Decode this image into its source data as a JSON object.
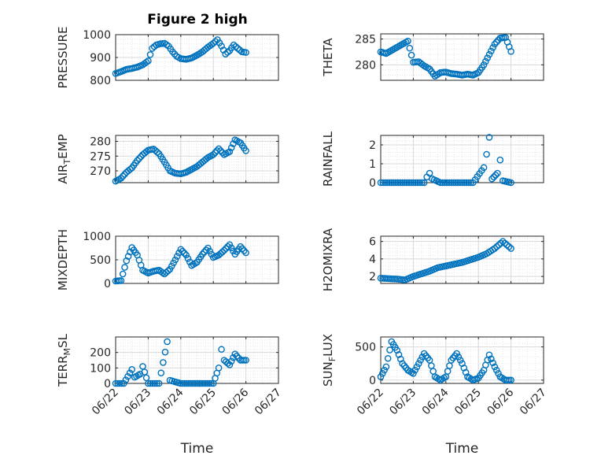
{
  "figure": {
    "title": "Figure 2 high",
    "marker_color": "#0072bd",
    "axes_color": "#262626",
    "grid_color": "#d9d9d9"
  },
  "chart_data": [
    {
      "type": "scatter",
      "ylabel": "PRESSURE",
      "xlabel": "",
      "title": "Figure 2 high",
      "xlim": [
        "06/22",
        "06/27"
      ],
      "ylim": [
        800,
        1000
      ],
      "yticks": [
        800,
        900,
        1000
      ],
      "grid": true,
      "points": [
        [
          "06/22 00:00",
          830
        ],
        [
          "06/22 04:00",
          838
        ],
        [
          "06/22 08:00",
          848
        ],
        [
          "06/22 12:00",
          852
        ],
        [
          "06/22 16:00",
          858
        ],
        [
          "06/22 20:00",
          868
        ],
        [
          "06/23 00:00",
          885
        ],
        [
          "06/23 03:00",
          940
        ],
        [
          "06/23 06:00",
          955
        ],
        [
          "06/23 09:00",
          960
        ],
        [
          "06/23 12:00",
          962
        ],
        [
          "06/23 15:00",
          950
        ],
        [
          "06/23 18:00",
          925
        ],
        [
          "06/23 21:00",
          905
        ],
        [
          "06/24 00:00",
          895
        ],
        [
          "06/24 04:00",
          892
        ],
        [
          "06/24 08:00",
          898
        ],
        [
          "06/24 12:00",
          910
        ],
        [
          "06/24 16:00",
          925
        ],
        [
          "06/24 20:00",
          945
        ],
        [
          "06/25 00:00",
          962
        ],
        [
          "06/25 03:00",
          978
        ],
        [
          "06/25 06:00",
          950
        ],
        [
          "06/25 09:00",
          915
        ],
        [
          "06/25 12:00",
          930
        ],
        [
          "06/25 15:00",
          955
        ],
        [
          "06/25 18:00",
          940
        ],
        [
          "06/25 21:00",
          925
        ],
        [
          "06/26 00:00",
          922
        ]
      ]
    },
    {
      "type": "scatter",
      "ylabel": "THETA",
      "xlabel": "",
      "xlim": [
        "06/22",
        "06/27"
      ],
      "ylim": [
        277,
        286
      ],
      "yticks": [
        280,
        285
      ],
      "grid": true,
      "points": [
        [
          "06/22 00:00",
          282.5
        ],
        [
          "06/22 04:00",
          282.2
        ],
        [
          "06/22 08:00",
          282.8
        ],
        [
          "06/22 12:00",
          283.4
        ],
        [
          "06/22 16:00",
          284.0
        ],
        [
          "06/22 20:00",
          284.6
        ],
        [
          "06/23 00:00",
          280.5
        ],
        [
          "06/23 04:00",
          280.6
        ],
        [
          "06/23 08:00",
          279.8
        ],
        [
          "06/23 12:00",
          279.2
        ],
        [
          "06/23 16:00",
          277.8
        ],
        [
          "06/23 20:00",
          278.5
        ],
        [
          "06/24 00:00",
          278.6
        ],
        [
          "06/24 04:00",
          278.3
        ],
        [
          "06/24 08:00",
          278.2
        ],
        [
          "06/24 12:00",
          278.0
        ],
        [
          "06/24 16:00",
          278.2
        ],
        [
          "06/24 20:00",
          278.0
        ],
        [
          "06/25 00:00",
          278.5
        ],
        [
          "06/25 04:00",
          280.0
        ],
        [
          "06/25 08:00",
          282.0
        ],
        [
          "06/25 12:00",
          284.0
        ],
        [
          "06/25 16:00",
          285.2
        ],
        [
          "06/25 20:00",
          285.3
        ],
        [
          "06/26 00:00",
          282.6
        ]
      ]
    },
    {
      "type": "scatter",
      "ylabel": "AIR_TEMP",
      "xlabel": "",
      "xlim": [
        "06/22",
        "06/27"
      ],
      "ylim": [
        266,
        282
      ],
      "yticks": [
        270,
        275,
        280
      ],
      "grid": true,
      "points": [
        [
          "06/22 00:00",
          266.5
        ],
        [
          "06/22 04:00",
          267.5
        ],
        [
          "06/22 08:00",
          269.5
        ],
        [
          "06/22 12:00",
          271.0
        ],
        [
          "06/22 16:00",
          273.5
        ],
        [
          "06/22 20:00",
          275.5
        ],
        [
          "06/23 00:00",
          277.0
        ],
        [
          "06/23 04:00",
          277.4
        ],
        [
          "06/23 08:00",
          275.8
        ],
        [
          "06/23 12:00",
          273.0
        ],
        [
          "06/23 16:00",
          270.0
        ],
        [
          "06/23 20:00",
          269.2
        ],
        [
          "06/24 00:00",
          269.0
        ],
        [
          "06/24 04:00",
          269.5
        ],
        [
          "06/24 08:00",
          270.5
        ],
        [
          "06/24 12:00",
          271.5
        ],
        [
          "06/24 16:00",
          273.0
        ],
        [
          "06/24 20:00",
          274.5
        ],
        [
          "06/25 00:00",
          275.5
        ],
        [
          "06/25 04:00",
          277.5
        ],
        [
          "06/25 08:00",
          275.5
        ],
        [
          "06/25 12:00",
          276.5
        ],
        [
          "06/25 16:00",
          280.5
        ],
        [
          "06/25 20:00",
          279.5
        ],
        [
          "06/26 00:00",
          276.8
        ]
      ]
    },
    {
      "type": "scatter",
      "ylabel": "RAINFALL",
      "xlabel": "",
      "xlim": [
        "06/22",
        "06/27"
      ],
      "ylim": [
        0,
        2.5
      ],
      "yticks": [
        0,
        1,
        2
      ],
      "grid": true,
      "points": [
        [
          "06/22 00:00",
          0
        ],
        [
          "06/22 08:00",
          0
        ],
        [
          "06/22 16:00",
          0
        ],
        [
          "06/23 00:00",
          0
        ],
        [
          "06/23 08:00",
          0
        ],
        [
          "06/23 10:00",
          0.3
        ],
        [
          "06/23 12:00",
          0.5
        ],
        [
          "06/23 14:00",
          0.2
        ],
        [
          "06/23 20:00",
          0
        ],
        [
          "06/24 04:00",
          0
        ],
        [
          "06/24 12:00",
          0
        ],
        [
          "06/24 20:00",
          0
        ],
        [
          "06/25 04:00",
          0.8
        ],
        [
          "06/25 06:00",
          1.5
        ],
        [
          "06/25 08:00",
          2.4
        ],
        [
          "06/25 10:00",
          0.2
        ],
        [
          "06/25 14:00",
          0.5
        ],
        [
          "06/25 16:00",
          1.2
        ],
        [
          "06/25 18:00",
          0.1
        ],
        [
          "06/26 00:00",
          0
        ]
      ]
    },
    {
      "type": "scatter",
      "ylabel": "MIXDEPTH",
      "xlabel": "",
      "xlim": [
        "06/22",
        "06/27"
      ],
      "ylim": [
        0,
        1000
      ],
      "yticks": [
        0,
        500,
        1000
      ],
      "grid": true,
      "points": [
        [
          "06/22 00:00",
          50
        ],
        [
          "06/22 04:00",
          60
        ],
        [
          "06/22 08:00",
          480
        ],
        [
          "06/22 12:00",
          760
        ],
        [
          "06/22 16:00",
          600
        ],
        [
          "06/22 20:00",
          280
        ],
        [
          "06/23 00:00",
          220
        ],
        [
          "06/23 04:00",
          260
        ],
        [
          "06/23 08:00",
          280
        ],
        [
          "06/23 12:00",
          200
        ],
        [
          "06/23 16:00",
          300
        ],
        [
          "06/23 20:00",
          500
        ],
        [
          "06/24 00:00",
          720
        ],
        [
          "06/24 04:00",
          600
        ],
        [
          "06/24 08:00",
          380
        ],
        [
          "06/24 12:00",
          450
        ],
        [
          "06/24 16:00",
          620
        ],
        [
          "06/24 20:00",
          750
        ],
        [
          "06/25 00:00",
          550
        ],
        [
          "06/25 04:00",
          600
        ],
        [
          "06/25 08:00",
          700
        ],
        [
          "06/25 12:00",
          820
        ],
        [
          "06/25 16:00",
          620
        ],
        [
          "06/25 20:00",
          780
        ],
        [
          "06/26 00:00",
          650
        ]
      ]
    },
    {
      "type": "scatter",
      "ylabel": "H2OMIXRA",
      "xlabel": "",
      "xlim": [
        "06/22",
        "06/27"
      ],
      "ylim": [
        1.2,
        6.6
      ],
      "yticks": [
        2,
        4,
        6
      ],
      "grid": true,
      "points": [
        [
          "06/22 00:00",
          1.8
        ],
        [
          "06/22 06:00",
          1.75
        ],
        [
          "06/22 12:00",
          1.7
        ],
        [
          "06/22 18:00",
          1.6
        ],
        [
          "06/23 00:00",
          2.0
        ],
        [
          "06/23 06:00",
          2.3
        ],
        [
          "06/23 12:00",
          2.6
        ],
        [
          "06/23 18:00",
          3.0
        ],
        [
          "06/24 00:00",
          3.2
        ],
        [
          "06/24 06:00",
          3.4
        ],
        [
          "06/24 12:00",
          3.6
        ],
        [
          "06/24 18:00",
          3.9
        ],
        [
          "06/25 00:00",
          4.2
        ],
        [
          "06/25 06:00",
          4.6
        ],
        [
          "06/25 12:00",
          5.2
        ],
        [
          "06/25 18:00",
          6.0
        ],
        [
          "06/26 00:00",
          5.2
        ]
      ]
    },
    {
      "type": "scatter",
      "ylabel": "TERR_MSL",
      "xlabel": "Time",
      "xlim": [
        "06/22",
        "06/27"
      ],
      "ylim": [
        0,
        300
      ],
      "yticks": [
        0,
        100,
        200
      ],
      "xticks": [
        "06/22",
        "06/23",
        "06/24",
        "06/25",
        "06/26",
        "06/27"
      ],
      "grid": true,
      "points": [
        [
          "06/22 00:00",
          0
        ],
        [
          "06/22 06:00",
          0
        ],
        [
          "06/22 12:00",
          90
        ],
        [
          "06/22 14:00",
          40
        ],
        [
          "06/22 18:00",
          60
        ],
        [
          "06/22 20:00",
          110
        ],
        [
          "06/23 00:00",
          0
        ],
        [
          "06/23 08:00",
          0
        ],
        [
          "06/23 14:00",
          270
        ],
        [
          "06/23 16:00",
          20
        ],
        [
          "06/24 00:00",
          0
        ],
        [
          "06/24 12:00",
          0
        ],
        [
          "06/25 00:00",
          0
        ],
        [
          "06/25 04:00",
          100
        ],
        [
          "06/25 06:00",
          220
        ],
        [
          "06/25 08:00",
          150
        ],
        [
          "06/25 12:00",
          120
        ],
        [
          "06/25 16:00",
          190
        ],
        [
          "06/25 20:00",
          150
        ],
        [
          "06/26 00:00",
          150
        ]
      ]
    },
    {
      "type": "scatter",
      "ylabel": "SUN_FLUX",
      "xlabel": "Time",
      "xlim": [
        "06/22",
        "06/27"
      ],
      "ylim": [
        -50,
        650
      ],
      "yticks": [
        0,
        500
      ],
      "xticks": [
        "06/22",
        "06/23",
        "06/24",
        "06/25",
        "06/26",
        "06/27"
      ],
      "grid": true,
      "points": [
        [
          "06/22 00:00",
          50
        ],
        [
          "06/22 04:00",
          200
        ],
        [
          "06/22 08:00",
          580
        ],
        [
          "06/22 12:00",
          450
        ],
        [
          "06/22 16:00",
          250
        ],
        [
          "06/22 20:00",
          150
        ],
        [
          "06/23 00:00",
          100
        ],
        [
          "06/23 04:00",
          250
        ],
        [
          "06/23 08:00",
          400
        ],
        [
          "06/23 12:00",
          300
        ],
        [
          "06/23 16:00",
          50
        ],
        [
          "06/23 20:00",
          0
        ],
        [
          "06/24 00:00",
          50
        ],
        [
          "06/24 04:00",
          300
        ],
        [
          "06/24 08:00",
          400
        ],
        [
          "06/24 12:00",
          250
        ],
        [
          "06/24 16:00",
          50
        ],
        [
          "06/24 20:00",
          0
        ],
        [
          "06/25 00:00",
          30
        ],
        [
          "06/25 04:00",
          150
        ],
        [
          "06/25 08:00",
          380
        ],
        [
          "06/25 12:00",
          200
        ],
        [
          "06/25 16:00",
          50
        ],
        [
          "06/25 20:00",
          0
        ],
        [
          "06/26 00:00",
          0
        ]
      ]
    }
  ]
}
